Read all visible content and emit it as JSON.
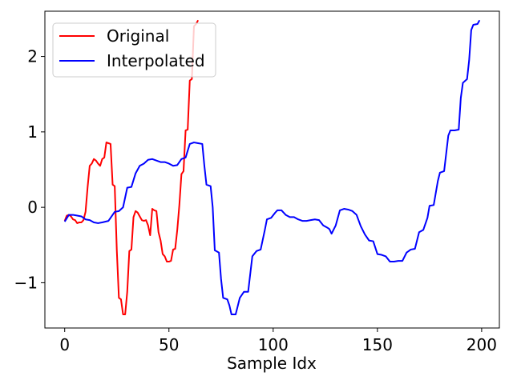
{
  "chart_data": {
    "type": "line",
    "title": "",
    "xlabel": "Sample Idx",
    "ylabel": "",
    "xlim": [
      -9.5,
      208.5
    ],
    "ylim": [
      -1.6,
      2.6
    ],
    "x_ticks": [
      0,
      50,
      100,
      150,
      200
    ],
    "x_tick_labels": [
      "0",
      "50",
      "100",
      "150",
      "200"
    ],
    "y_ticks": [
      -1,
      0,
      1,
      2
    ],
    "y_tick_labels": [
      "−1",
      "0",
      "1",
      "2"
    ],
    "grid": false,
    "legend_position": "upper left",
    "series": [
      {
        "name": "Original",
        "color": "#ff0000",
        "points": [
          [
            0,
            -0.18
          ],
          [
            1,
            -0.11
          ],
          [
            2,
            -0.1
          ],
          [
            3,
            -0.12
          ],
          [
            4,
            -0.16
          ],
          [
            5,
            -0.17
          ],
          [
            6,
            -0.21
          ],
          [
            7,
            -0.2
          ],
          [
            8,
            -0.2
          ],
          [
            9,
            -0.17
          ],
          [
            10,
            -0.06
          ],
          [
            11,
            0.27
          ],
          [
            12,
            0.55
          ],
          [
            13,
            0.58
          ],
          [
            14,
            0.64
          ],
          [
            15,
            0.62
          ],
          [
            16,
            0.58
          ],
          [
            17,
            0.55
          ],
          [
            18,
            0.64
          ],
          [
            19,
            0.66
          ],
          [
            20,
            0.86
          ],
          [
            21,
            0.85
          ],
          [
            22,
            0.84
          ],
          [
            23,
            0.3
          ],
          [
            24,
            0.28
          ],
          [
            25,
            -0.57
          ],
          [
            26,
            -1.2
          ],
          [
            27,
            -1.22
          ],
          [
            28,
            -1.42
          ],
          [
            29,
            -1.42
          ],
          [
            30,
            -1.12
          ],
          [
            31,
            -0.58
          ],
          [
            32,
            -0.56
          ],
          [
            33,
            -0.13
          ],
          [
            34,
            -0.05
          ],
          [
            35,
            -0.07
          ],
          [
            36,
            -0.12
          ],
          [
            37,
            -0.17
          ],
          [
            38,
            -0.18
          ],
          [
            39,
            -0.17
          ],
          [
            40,
            -0.24
          ],
          [
            41,
            -0.37
          ],
          [
            42,
            -0.02
          ],
          [
            43,
            -0.04
          ],
          [
            44,
            -0.05
          ],
          [
            45,
            -0.33
          ],
          [
            46,
            -0.44
          ],
          [
            47,
            -0.62
          ],
          [
            48,
            -0.65
          ],
          [
            49,
            -0.72
          ],
          [
            50,
            -0.72
          ],
          [
            51,
            -0.71
          ],
          [
            52,
            -0.56
          ],
          [
            53,
            -0.55
          ],
          [
            54,
            -0.3
          ],
          [
            55,
            0.03
          ],
          [
            56,
            0.44
          ],
          [
            57,
            0.48
          ],
          [
            58,
            1.02
          ],
          [
            59,
            1.03
          ],
          [
            60,
            1.68
          ],
          [
            61,
            1.7
          ],
          [
            62,
            2.4
          ],
          [
            63,
            2.43
          ],
          [
            64,
            2.48
          ]
        ]
      },
      {
        "name": "Interpolated",
        "color": "#0000ff",
        "points": [
          [
            0,
            -0.19
          ],
          [
            2,
            -0.1
          ],
          [
            4,
            -0.1
          ],
          [
            6,
            -0.11
          ],
          [
            8,
            -0.12
          ],
          [
            10,
            -0.16
          ],
          [
            12,
            -0.17
          ],
          [
            14,
            -0.2
          ],
          [
            16,
            -0.21
          ],
          [
            18,
            -0.2
          ],
          [
            21,
            -0.18
          ],
          [
            24,
            -0.06
          ],
          [
            26,
            -0.05
          ],
          [
            28,
            0.0
          ],
          [
            30,
            0.26
          ],
          [
            32,
            0.27
          ],
          [
            34,
            0.45
          ],
          [
            36,
            0.55
          ],
          [
            38,
            0.58
          ],
          [
            40,
            0.63
          ],
          [
            42,
            0.64
          ],
          [
            44,
            0.62
          ],
          [
            46,
            0.6
          ],
          [
            48,
            0.6
          ],
          [
            50,
            0.58
          ],
          [
            52,
            0.55
          ],
          [
            54,
            0.56
          ],
          [
            56,
            0.64
          ],
          [
            58,
            0.66
          ],
          [
            60,
            0.84
          ],
          [
            62,
            0.86
          ],
          [
            64,
            0.85
          ],
          [
            66,
            0.84
          ],
          [
            67,
            0.55
          ],
          [
            68,
            0.3
          ],
          [
            70,
            0.28
          ],
          [
            71,
            0.0
          ],
          [
            72,
            -0.57
          ],
          [
            74,
            -0.6
          ],
          [
            75,
            -0.95
          ],
          [
            76,
            -1.2
          ],
          [
            78,
            -1.22
          ],
          [
            79,
            -1.3
          ],
          [
            80,
            -1.42
          ],
          [
            82,
            -1.42
          ],
          [
            84,
            -1.2
          ],
          [
            86,
            -1.12
          ],
          [
            88,
            -1.12
          ],
          [
            90,
            -0.65
          ],
          [
            92,
            -0.58
          ],
          [
            94,
            -0.56
          ],
          [
            96,
            -0.3
          ],
          [
            97,
            -0.16
          ],
          [
            99,
            -0.14
          ],
          [
            101,
            -0.07
          ],
          [
            102,
            -0.04
          ],
          [
            104,
            -0.04
          ],
          [
            106,
            -0.1
          ],
          [
            108,
            -0.13
          ],
          [
            110,
            -0.13
          ],
          [
            112,
            -0.16
          ],
          [
            114,
            -0.18
          ],
          [
            116,
            -0.18
          ],
          [
            118,
            -0.17
          ],
          [
            120,
            -0.16
          ],
          [
            122,
            -0.17
          ],
          [
            124,
            -0.24
          ],
          [
            126,
            -0.27
          ],
          [
            127,
            -0.29
          ],
          [
            128,
            -0.35
          ],
          [
            130,
            -0.24
          ],
          [
            132,
            -0.04
          ],
          [
            134,
            -0.02
          ],
          [
            136,
            -0.03
          ],
          [
            138,
            -0.05
          ],
          [
            140,
            -0.1
          ],
          [
            142,
            -0.25
          ],
          [
            144,
            -0.36
          ],
          [
            146,
            -0.44
          ],
          [
            148,
            -0.45
          ],
          [
            150,
            -0.62
          ],
          [
            152,
            -0.63
          ],
          [
            154,
            -0.65
          ],
          [
            156,
            -0.72
          ],
          [
            158,
            -0.72
          ],
          [
            160,
            -0.71
          ],
          [
            162,
            -0.71
          ],
          [
            164,
            -0.6
          ],
          [
            166,
            -0.56
          ],
          [
            168,
            -0.55
          ],
          [
            170,
            -0.33
          ],
          [
            172,
            -0.3
          ],
          [
            174,
            -0.14
          ],
          [
            175,
            0.02
          ],
          [
            177,
            0.03
          ],
          [
            179,
            0.35
          ],
          [
            180,
            0.46
          ],
          [
            182,
            0.48
          ],
          [
            184,
            0.95
          ],
          [
            185,
            1.02
          ],
          [
            187,
            1.02
          ],
          [
            189,
            1.03
          ],
          [
            190,
            1.45
          ],
          [
            191,
            1.65
          ],
          [
            193,
            1.7
          ],
          [
            194,
            1.95
          ],
          [
            195,
            2.35
          ],
          [
            196,
            2.42
          ],
          [
            198,
            2.43
          ],
          [
            199,
            2.48
          ]
        ]
      }
    ]
  }
}
